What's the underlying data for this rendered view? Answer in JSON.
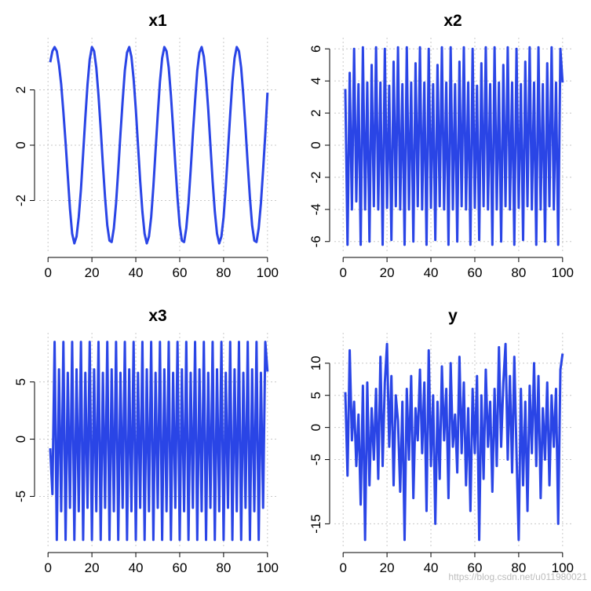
{
  "watermark": "https://blog.csdn.net/u011980021",
  "series_color": "#2a45e6",
  "chart_data": [
    {
      "type": "line",
      "title": "x1",
      "xlabel": "",
      "ylabel": "",
      "xlim": [
        0,
        100
      ],
      "ylim": [
        -3.6,
        3.6
      ],
      "xticks": [
        0,
        20,
        40,
        60,
        80,
        100
      ],
      "yticks": [
        -2,
        0,
        2
      ],
      "grid": true,
      "legend": "none",
      "series": [
        {
          "x": [
            1,
            2,
            3,
            4,
            5,
            6,
            7,
            8,
            9,
            10,
            11,
            12,
            13,
            14,
            15,
            16,
            17,
            18,
            19,
            20,
            21,
            22,
            23,
            24,
            25,
            26,
            27,
            28,
            29,
            30,
            31,
            32,
            33,
            34,
            35,
            36,
            37,
            38,
            39,
            40,
            41,
            42,
            43,
            44,
            45,
            46,
            47,
            48,
            49,
            50,
            51,
            52,
            53,
            54,
            55,
            56,
            57,
            58,
            59,
            60,
            61,
            62,
            63,
            64,
            65,
            66,
            67,
            68,
            69,
            70,
            71,
            72,
            73,
            74,
            75,
            76,
            77,
            78,
            79,
            80,
            81,
            82,
            83,
            84,
            85,
            86,
            87,
            88,
            89,
            90,
            91,
            92,
            93,
            94,
            95,
            96,
            97,
            98,
            99,
            100
          ],
          "y": [
            3.0,
            3.4,
            3.55,
            3.4,
            2.9,
            2.2,
            1.2,
            0.1,
            -1.1,
            -2.3,
            -3.2,
            -3.55,
            -3.3,
            -2.6,
            -1.6,
            -0.3,
            1.0,
            2.2,
            3.1,
            3.55,
            3.4,
            2.8,
            1.8,
            0.6,
            -0.7,
            -1.9,
            -2.9,
            -3.45,
            -3.5,
            -3.0,
            -2.1,
            -0.9,
            0.4,
            1.6,
            2.7,
            3.35,
            3.55,
            3.2,
            2.4,
            1.3,
            0.0,
            -1.3,
            -2.4,
            -3.2,
            -3.55,
            -3.3,
            -2.6,
            -1.5,
            -0.2,
            1.1,
            2.3,
            3.15,
            3.55,
            3.4,
            2.8,
            1.8,
            0.6,
            -0.7,
            -1.9,
            -2.9,
            -3.45,
            -3.5,
            -3.0,
            -2.1,
            -0.9,
            0.4,
            1.6,
            2.7,
            3.35,
            3.55,
            3.2,
            2.4,
            1.3,
            0.0,
            -1.3,
            -2.4,
            -3.2,
            -3.55,
            -3.3,
            -2.6,
            -1.5,
            -0.2,
            1.1,
            2.3,
            3.15,
            3.55,
            3.4,
            2.8,
            1.8,
            0.6,
            -0.7,
            -1.9,
            -2.9,
            -3.45,
            -3.5,
            -3.0,
            -2.1,
            -0.9,
            0.4,
            1.9
          ]
        }
      ]
    },
    {
      "type": "line",
      "title": "x2",
      "xlabel": "",
      "ylabel": "",
      "xlim": [
        0,
        100
      ],
      "ylim": [
        -6.2,
        6.2
      ],
      "xticks": [
        0,
        20,
        40,
        60,
        80,
        100
      ],
      "yticks": [
        -6,
        -4,
        -2,
        0,
        2,
        4,
        6
      ],
      "grid": true,
      "legend": "none",
      "series": [
        {
          "x": [
            1,
            2,
            3,
            4,
            5,
            6,
            7,
            8,
            9,
            10,
            11,
            12,
            13,
            14,
            15,
            16,
            17,
            18,
            19,
            20,
            21,
            22,
            23,
            24,
            25,
            26,
            27,
            28,
            29,
            30,
            31,
            32,
            33,
            34,
            35,
            36,
            37,
            38,
            39,
            40,
            41,
            42,
            43,
            44,
            45,
            46,
            47,
            48,
            49,
            50,
            51,
            52,
            53,
            54,
            55,
            56,
            57,
            58,
            59,
            60,
            61,
            62,
            63,
            64,
            65,
            66,
            67,
            68,
            69,
            70,
            71,
            72,
            73,
            74,
            75,
            76,
            77,
            78,
            79,
            80,
            81,
            82,
            83,
            84,
            85,
            86,
            87,
            88,
            89,
            90,
            91,
            92,
            93,
            94,
            95,
            96,
            97,
            98,
            99,
            100
          ],
          "y": [
            3.5,
            -6.2,
            4.5,
            -4.0,
            6.0,
            -3.5,
            3.8,
            -6.2,
            6.1,
            -4.0,
            3.9,
            -6.0,
            5.0,
            -3.8,
            6.1,
            -4.0,
            3.9,
            -6.2,
            6.0,
            -3.9,
            3.7,
            -5.9,
            5.2,
            -3.8,
            6.1,
            -4.0,
            3.8,
            -6.2,
            6.1,
            -4.0,
            3.9,
            -6.0,
            5.1,
            -3.8,
            6.1,
            -4.0,
            3.9,
            -6.2,
            6.0,
            -3.9,
            3.8,
            -5.9,
            5.0,
            -3.8,
            6.1,
            -4.0,
            3.9,
            -6.2,
            6.1,
            -4.0,
            3.8,
            -6.0,
            5.2,
            -3.8,
            6.1,
            -4.0,
            3.9,
            -6.2,
            6.0,
            -3.9,
            3.7,
            -5.9,
            5.1,
            -3.8,
            6.1,
            -4.0,
            3.8,
            -6.2,
            6.1,
            -4.0,
            3.9,
            -6.0,
            5.0,
            -3.8,
            6.1,
            -4.0,
            3.9,
            -6.2,
            6.0,
            -3.9,
            3.8,
            -5.9,
            5.2,
            -3.8,
            6.1,
            -4.0,
            3.9,
            -6.2,
            6.1,
            -4.0,
            3.8,
            -6.0,
            5.1,
            -3.8,
            6.1,
            -4.0,
            3.9,
            -6.2,
            6.0,
            3.9
          ]
        }
      ]
    },
    {
      "type": "line",
      "title": "x3",
      "xlabel": "",
      "ylabel": "",
      "xlim": [
        0,
        100
      ],
      "ylim": [
        -8.8,
        8.6
      ],
      "xticks": [
        0,
        20,
        40,
        60,
        80,
        100
      ],
      "yticks": [
        -5,
        0,
        5
      ],
      "grid": true,
      "legend": "none",
      "series": [
        {
          "x": [
            1,
            2,
            3,
            4,
            5,
            6,
            7,
            8,
            9,
            10,
            11,
            12,
            13,
            14,
            15,
            16,
            17,
            18,
            19,
            20,
            21,
            22,
            23,
            24,
            25,
            26,
            27,
            28,
            29,
            30,
            31,
            32,
            33,
            34,
            35,
            36,
            37,
            38,
            39,
            40,
            41,
            42,
            43,
            44,
            45,
            46,
            47,
            48,
            49,
            50,
            51,
            52,
            53,
            54,
            55,
            56,
            57,
            58,
            59,
            60,
            61,
            62,
            63,
            64,
            65,
            66,
            67,
            68,
            69,
            70,
            71,
            72,
            73,
            74,
            75,
            76,
            77,
            78,
            79,
            80,
            81,
            82,
            83,
            84,
            85,
            86,
            87,
            88,
            89,
            90,
            91,
            92,
            93,
            94,
            95,
            96,
            97,
            98,
            99,
            100
          ],
          "y": [
            -0.8,
            -4.8,
            8.5,
            -8.8,
            6.1,
            -6.3,
            8.5,
            -8.8,
            5.8,
            -6.0,
            8.5,
            -8.8,
            6.1,
            -6.3,
            8.5,
            -8.8,
            5.8,
            -6.0,
            8.5,
            -8.8,
            6.1,
            -6.3,
            8.5,
            -8.8,
            5.8,
            -6.0,
            8.5,
            -8.8,
            6.1,
            -6.3,
            8.5,
            -8.8,
            5.8,
            -6.0,
            8.5,
            -8.8,
            6.1,
            -6.3,
            8.5,
            -8.8,
            5.8,
            -6.0,
            8.5,
            -8.8,
            6.1,
            -6.3,
            8.5,
            -8.8,
            5.8,
            -6.0,
            8.5,
            -8.8,
            6.1,
            -6.3,
            8.5,
            -8.8,
            5.8,
            -6.0,
            8.5,
            -8.8,
            6.1,
            -6.3,
            8.5,
            -8.8,
            5.8,
            -6.0,
            8.5,
            -8.8,
            6.1,
            -6.3,
            8.5,
            -8.8,
            5.8,
            -6.0,
            8.5,
            -8.8,
            6.1,
            -6.3,
            8.5,
            -8.8,
            5.8,
            -6.0,
            8.5,
            -8.8,
            6.1,
            -6.3,
            8.5,
            -8.8,
            5.8,
            -6.0,
            8.5,
            -8.8,
            6.1,
            -6.3,
            8.5,
            -8.8,
            5.8,
            -6.0,
            8.5,
            5.9
          ]
        }
      ]
    },
    {
      "type": "line",
      "title": "y",
      "xlabel": "",
      "ylabel": "",
      "xlim": [
        0,
        100
      ],
      "ylim": [
        -17.5,
        13.5
      ],
      "xticks": [
        0,
        20,
        40,
        60,
        80,
        100
      ],
      "yticks": [
        -15,
        -5,
        0,
        5,
        10
      ],
      "grid": true,
      "legend": "none",
      "series": [
        {
          "x": [
            1,
            2,
            3,
            4,
            5,
            6,
            7,
            8,
            9,
            10,
            11,
            12,
            13,
            14,
            15,
            16,
            17,
            18,
            19,
            20,
            21,
            22,
            23,
            24,
            25,
            26,
            27,
            28,
            29,
            30,
            31,
            32,
            33,
            34,
            35,
            36,
            37,
            38,
            39,
            40,
            41,
            42,
            43,
            44,
            45,
            46,
            47,
            48,
            49,
            50,
            51,
            52,
            53,
            54,
            55,
            56,
            57,
            58,
            59,
            60,
            61,
            62,
            63,
            64,
            65,
            66,
            67,
            68,
            69,
            70,
            71,
            72,
            73,
            74,
            75,
            76,
            77,
            78,
            79,
            80,
            81,
            82,
            83,
            84,
            85,
            86,
            87,
            88,
            89,
            90,
            91,
            92,
            93,
            94,
            95,
            96,
            97,
            98,
            99,
            100
          ],
          "y": [
            5.5,
            -7.5,
            12.0,
            -2.0,
            4.0,
            -6.0,
            2.0,
            -12.0,
            6.5,
            -17.5,
            7.0,
            -9.0,
            3.0,
            -5.0,
            6.0,
            -8.0,
            11.0,
            -6.0,
            7.0,
            13.0,
            -3.0,
            8.0,
            -9.0,
            5.0,
            1.0,
            -10.0,
            4.0,
            -17.5,
            6.0,
            -5.0,
            8.0,
            -11.0,
            3.0,
            -2.0,
            9.0,
            -4.0,
            7.0,
            -13.0,
            12.0,
            -6.0,
            5.0,
            -15.0,
            4.0,
            -8.0,
            9.5,
            -2.0,
            6.0,
            -11.0,
            10.0,
            -3.0,
            2.0,
            -7.0,
            11.0,
            -4.0,
            7.0,
            -9.0,
            3.0,
            -13.0,
            6.0,
            -4.0,
            8.0,
            -17.5,
            5.0,
            -8.0,
            9.0,
            -3.0,
            4.0,
            -10.0,
            6.0,
            -6.0,
            12.5,
            -3.0,
            7.0,
            13.0,
            -5.0,
            8.0,
            -7.0,
            11.0,
            -4.0,
            -17.5,
            6.0,
            -9.0,
            4.0,
            -13.0,
            6.5,
            -4.0,
            10.0,
            -6.0,
            8.0,
            -11.0,
            3.0,
            -5.0,
            7.0,
            -9.0,
            5.0,
            -3.0,
            6.0,
            -15.0,
            9.0,
            11.5
          ]
        }
      ]
    }
  ]
}
